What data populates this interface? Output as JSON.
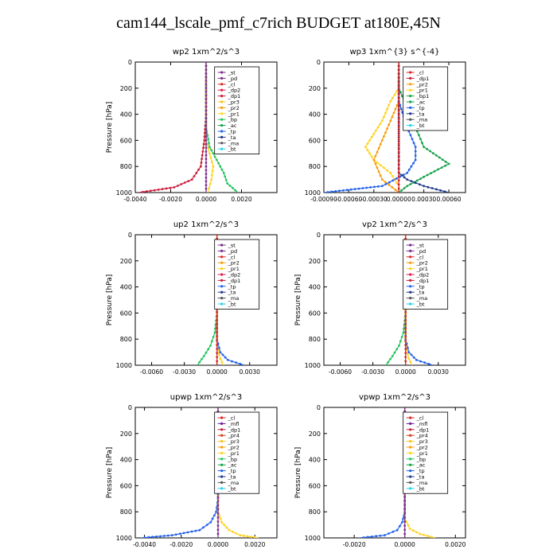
{
  "page": {
    "title": "cam144_lscale_pmf_c7rich  BUDGET at180E,45N"
  },
  "colors": {
    "pd": "#7b2e8e",
    "cl": "#d62728",
    "dp2": "#e11d48",
    "dp1": "#c81e3a",
    "pr2": "#f59e0b",
    "pr1": "#ffd21f",
    "pr3": "#f5c518",
    "pr4": "#d9381e",
    "bp": "#22c55e",
    "ac": "#16a34a",
    "tp": "#2563eb",
    "ta": "#1e3a8a",
    "ma": "#555555",
    "bt": "#22d3ee",
    "mfl": "#6a1b9a",
    "st": "#7b2e8e",
    "bp1": "#22a34a"
  },
  "chart_data": [
    {
      "type": "line",
      "title": "wp2  1xm^2/s^3",
      "ylabel": "Pressure [hPa]",
      "ylim": [
        1000,
        0
      ],
      "yticks": [
        "0",
        "200",
        "400",
        "600",
        "800",
        "1000"
      ],
      "xlim": [
        -0.004,
        0.004
      ],
      "xticks": [
        -0.004,
        -0.002,
        0.0,
        0.002
      ],
      "xtick_labels": [
        "-0.0040",
        "-0.0020",
        "0.0000",
        "0.0020"
      ],
      "legend": [
        "_st",
        "_pd",
        "_cl",
        "_dp2",
        "_dp1",
        "_pr3",
        "_pr2",
        "_pr1",
        "_bp",
        "_ac",
        "_tp",
        "_ta",
        "_ma",
        "_bt"
      ],
      "series": [
        {
          "name": "_dp1",
          "color": "#c81e3a",
          "x": [
            0,
            0,
            -0.0001,
            -0.0003,
            -0.0008,
            -0.0018,
            -0.0038
          ],
          "y": [
            0,
            400,
            600,
            800,
            900,
            960,
            1000
          ]
        },
        {
          "name": "_bp",
          "color": "#22c55e",
          "x": [
            0,
            0,
            0.0002,
            0.0006,
            0.001,
            0.0012,
            0.0018
          ],
          "y": [
            0,
            500,
            650,
            750,
            850,
            930,
            1000
          ]
        },
        {
          "name": "_pr1",
          "color": "#ffd21f",
          "x": [
            0,
            0,
            0.0002,
            0.0004,
            0.0003,
            0.0001
          ],
          "y": [
            0,
            600,
            700,
            800,
            900,
            1000
          ]
        },
        {
          "name": "_pd",
          "color": "#7b2e8e",
          "x": [
            0,
            0,
            0,
            0,
            0,
            0
          ],
          "y": [
            0,
            200,
            400,
            600,
            800,
            1000
          ]
        }
      ]
    },
    {
      "type": "line",
      "title": "wp3  1xm^{3} s^{-4}",
      "ylabel": "",
      "ylim": [
        1000,
        0
      ],
      "yticks": [
        "0",
        "200",
        "400",
        "600",
        "800",
        "1000"
      ],
      "xlim": [
        -0.0009,
        0.0008
      ],
      "xticks": [
        -0.0009,
        -0.0006,
        -0.0003,
        0.0,
        0.0003,
        0.0006
      ],
      "xtick_labels": [
        "-0.00090",
        "-0.00060",
        "-0.00030",
        "0.00000",
        "0.00030",
        "0.00060"
      ],
      "legend": [
        "_cl",
        "_dp1",
        "_pr2",
        "_pr1",
        "_bp1",
        "_ac",
        "_tp",
        "_ta",
        "_ma",
        "_bt"
      ],
      "series": [
        {
          "name": "_pr1",
          "color": "#ffd21f",
          "x": [
            0,
            0,
            -0.0001,
            -0.0002,
            -0.0003,
            -0.0004,
            -0.0003,
            -0.0001,
            0
          ],
          "y": [
            0,
            200,
            300,
            450,
            550,
            650,
            750,
            850,
            950
          ]
        },
        {
          "name": "_pr2",
          "color": "#f59e0b",
          "x": [
            0,
            0,
            -0.0001,
            -0.0002,
            -0.0003,
            -0.0002,
            0
          ],
          "y": [
            0,
            300,
            450,
            600,
            750,
            900,
            1000
          ]
        },
        {
          "name": "_ac",
          "color": "#16a34a",
          "x": [
            0,
            0,
            0.0001,
            0.0002,
            0.0003,
            0.0006,
            0.0003,
            0.0001,
            0
          ],
          "y": [
            0,
            200,
            350,
            500,
            650,
            780,
            880,
            950,
            1000
          ]
        },
        {
          "name": "_tp",
          "color": "#2563eb",
          "x": [
            0,
            0,
            0.0001,
            0.0002,
            0.0002,
            0.0001,
            -0.0002,
            -0.0009
          ],
          "y": [
            0,
            300,
            500,
            650,
            750,
            850,
            950,
            1000
          ]
        },
        {
          "name": "_ta",
          "color": "#1e3a8a",
          "x": [
            0,
            0,
            0.0001,
            0.0003,
            0.0006
          ],
          "y": [
            0,
            850,
            900,
            950,
            1000
          ]
        },
        {
          "name": "_cl",
          "color": "#d62728",
          "x": [
            0,
            0,
            0,
            0,
            0
          ],
          "y": [
            0,
            250,
            500,
            750,
            1000
          ]
        }
      ]
    },
    {
      "type": "line",
      "title": "up2  1xm^2/s^3",
      "ylabel": "Pressure [hPa]",
      "ylim": [
        1000,
        0
      ],
      "yticks": [
        "0",
        "200",
        "400",
        "600",
        "800",
        "1000"
      ],
      "xlim": [
        -0.0075,
        0.0055
      ],
      "xticks": [
        -0.006,
        -0.003,
        0.0,
        0.003
      ],
      "xtick_labels": [
        "-0.0060",
        "-0.0030",
        "0.0000",
        "0.0030"
      ],
      "legend": [
        "_st",
        "_pd",
        "_cl",
        "_pr2",
        "_pr1",
        "_dp2",
        "_dp1",
        "_tp",
        "_ta",
        "_ma",
        "_bt"
      ],
      "series": [
        {
          "name": "_dp2",
          "color": "#22c55e",
          "x": [
            0,
            0,
            -0.0002,
            -0.0006,
            -0.0012,
            -0.0018
          ],
          "y": [
            0,
            600,
            750,
            850,
            930,
            1000
          ]
        },
        {
          "name": "_tp",
          "color": "#2563eb",
          "x": [
            0,
            0,
            0.0003,
            0.001,
            0.0025
          ],
          "y": [
            0,
            800,
            900,
            960,
            1000
          ]
        },
        {
          "name": "_pr1",
          "color": "#ffd21f",
          "x": [
            0,
            0,
            0.0003,
            0.0006
          ],
          "y": [
            0,
            850,
            950,
            1000
          ]
        },
        {
          "name": "_cl",
          "color": "#d62728",
          "x": [
            0,
            0,
            0,
            0,
            0
          ],
          "y": [
            0,
            250,
            500,
            750,
            1000
          ]
        }
      ]
    },
    {
      "type": "line",
      "title": "vp2  1xm^2/s^3",
      "ylabel": "Pressure [hPa]",
      "ylim": [
        1000,
        0
      ],
      "yticks": [
        "0",
        "200",
        "400",
        "600",
        "800",
        "1000"
      ],
      "xlim": [
        -0.0075,
        0.0055
      ],
      "xticks": [
        -0.006,
        -0.003,
        0.0,
        0.003
      ],
      "xtick_labels": [
        "-0.0060",
        "-0.0030",
        "0.0000",
        "0.0030"
      ],
      "legend": [
        "_st",
        "_pd",
        "_cl",
        "_pr2",
        "_pr1",
        "_dp2",
        "_dp1",
        "_tp",
        "_ta",
        "_ma",
        "_bt"
      ],
      "series": [
        {
          "name": "_dp2",
          "color": "#22c55e",
          "x": [
            0,
            0,
            -0.0002,
            -0.0006,
            -0.0012,
            -0.0018
          ],
          "y": [
            0,
            600,
            750,
            850,
            930,
            1000
          ]
        },
        {
          "name": "_tp",
          "color": "#2563eb",
          "x": [
            0,
            0,
            0.0003,
            0.001,
            0.0025
          ],
          "y": [
            0,
            800,
            900,
            960,
            1000
          ]
        },
        {
          "name": "_pr1",
          "color": "#ffd21f",
          "x": [
            0,
            0,
            0.0003,
            0.0006
          ],
          "y": [
            0,
            850,
            950,
            1000
          ]
        },
        {
          "name": "_cl",
          "color": "#d62728",
          "x": [
            0,
            0,
            0,
            0,
            0
          ],
          "y": [
            0,
            250,
            500,
            750,
            1000
          ]
        }
      ]
    },
    {
      "type": "line",
      "title": "upwp  1xm^2/s^3",
      "ylabel": "Pressure [hPa]",
      "ylim": [
        1000,
        0
      ],
      "yticks": [
        "0",
        "200",
        "400",
        "600",
        "800",
        "1000"
      ],
      "xlim": [
        -0.0045,
        0.0032
      ],
      "xticks": [
        -0.004,
        -0.002,
        0.0,
        0.002
      ],
      "xtick_labels": [
        "-0.0040",
        "-0.0020",
        "0.0000",
        "0.0020"
      ],
      "legend": [
        "_cl",
        "_mfl",
        "_dp1",
        "_pr4",
        "_pr3",
        "_pr2",
        "_pr1",
        "_bp",
        "_ac",
        "_tp",
        "_ta",
        "_ma",
        "_bt"
      ],
      "series": [
        {
          "name": "_tp",
          "color": "#2563eb",
          "x": [
            0,
            0,
            -0.0001,
            -0.0004,
            -0.001,
            -0.0025,
            -0.0042
          ],
          "y": [
            0,
            700,
            800,
            880,
            940,
            980,
            1000
          ]
        },
        {
          "name": "_pr1",
          "color": "#ffd21f",
          "x": [
            0,
            0,
            0.0002,
            0.0006,
            0.0012,
            0.0022
          ],
          "y": [
            0,
            800,
            880,
            940,
            980,
            1000
          ]
        },
        {
          "name": "_cl",
          "color": "#7b2e8e",
          "x": [
            0,
            0,
            0,
            0,
            0
          ],
          "y": [
            0,
            250,
            500,
            750,
            1000
          ]
        }
      ]
    },
    {
      "type": "line",
      "title": "vpwp  1xm^2/s^3",
      "ylabel": "Pressure [hPa]",
      "ylim": [
        1000,
        0
      ],
      "yticks": [
        "0",
        "200",
        "400",
        "600",
        "800",
        "1000"
      ],
      "xlim": [
        -0.0032,
        0.0024
      ],
      "xticks": [
        -0.002,
        0.0,
        0.002
      ],
      "xtick_labels": [
        "-0.0020",
        "0.0000",
        "0.0020"
      ],
      "legend": [
        "_cl",
        "_mfl",
        "_dp1",
        "_pr4",
        "_pr3",
        "_pr2",
        "_pr1",
        "_bp",
        "_ac",
        "_tp",
        "_ta",
        "_ma",
        "_bt"
      ],
      "series": [
        {
          "name": "_tp",
          "color": "#2563eb",
          "x": [
            0,
            0,
            -0.0001,
            -0.0003,
            -0.0008,
            -0.0018
          ],
          "y": [
            0,
            800,
            880,
            940,
            980,
            1000
          ]
        },
        {
          "name": "_pr1",
          "color": "#ffd21f",
          "x": [
            0,
            0,
            0.0002,
            0.0006,
            0.0012
          ],
          "y": [
            0,
            850,
            930,
            970,
            1000
          ]
        },
        {
          "name": "_cl",
          "color": "#7b2e8e",
          "x": [
            0,
            0,
            0,
            0,
            0
          ],
          "y": [
            0,
            250,
            500,
            750,
            1000
          ]
        }
      ]
    }
  ]
}
